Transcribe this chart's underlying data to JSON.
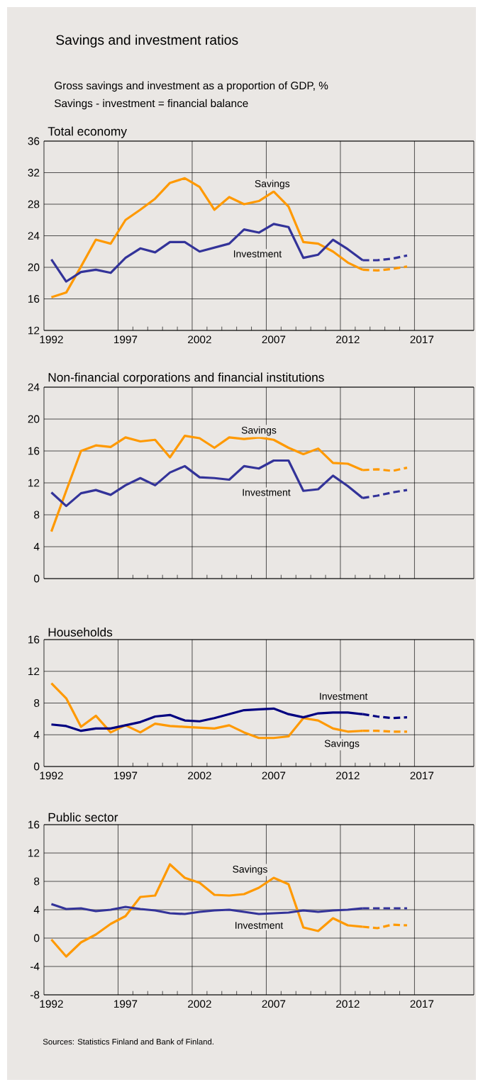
{
  "chart_data": [
    {
      "type": "line",
      "title": "Total economy",
      "annotations": [
        "Savings and investment ratios",
        "Gross savings and investment as a proportion of GDP, %",
        "Savings - investment = financial balance"
      ],
      "xlim": [
        1991.5,
        2020.5
      ],
      "ylim": [
        12,
        36
      ],
      "xticks": [
        1992,
        {
          "value": 1996.5,
          "label": null
        },
        1997,
        {
          "value": 2001.5,
          "label": null
        },
        2002,
        {
          "value": 2006.5,
          "label": null
        },
        2007,
        {
          "value": 2011.5,
          "label": null
        },
        2012,
        {
          "value": 2016.5,
          "label": null
        },
        2017
      ],
      "yticks": [
        12,
        16,
        20,
        24,
        28,
        32,
        36
      ],
      "grid": true,
      "series": [
        {
          "name": "Savings",
          "color": "#ff9900",
          "line_style": "solid",
          "x": [
            1992,
            1993,
            1994,
            1995,
            1996,
            1997,
            1998,
            1999,
            2000,
            2001,
            2002,
            2003,
            2004,
            2005,
            2006,
            2007,
            2008,
            2009,
            2010,
            2011,
            2012,
            2013
          ],
          "values": [
            16.2,
            16.8,
            20.1,
            23.5,
            23.0,
            26.0,
            27.3,
            28.7,
            30.7,
            31.3,
            30.2,
            27.3,
            28.9,
            28.0,
            28.4,
            29.6,
            27.7,
            23.2,
            23.0,
            22.0,
            20.6,
            19.7
          ]
        },
        {
          "color": "#ff9900",
          "line_style": "dashed",
          "x": [
            2013,
            2014,
            2015,
            2016
          ],
          "values": [
            19.7,
            19.6,
            19.8,
            20.1
          ]
        },
        {
          "name": "Investment",
          "color": "#333399",
          "line_style": "solid",
          "x": [
            1992,
            1993,
            1994,
            1995,
            1996,
            1997,
            1998,
            1999,
            2000,
            2001,
            2002,
            2003,
            2004,
            2005,
            2006,
            2007,
            2008,
            2009,
            2010,
            2011,
            2012,
            2013
          ],
          "values": [
            21.0,
            18.2,
            19.4,
            19.7,
            19.3,
            21.2,
            22.4,
            21.9,
            23.2,
            23.2,
            22.0,
            22.5,
            23.0,
            24.8,
            24.4,
            25.5,
            25.1,
            21.2,
            21.6,
            23.5,
            22.3,
            20.9
          ]
        },
        {
          "color": "#333399",
          "line_style": "dashed",
          "x": [
            2013,
            2014,
            2015,
            2016
          ],
          "values": [
            20.9,
            20.9,
            21.1,
            21.5
          ]
        }
      ]
    },
    {
      "type": "line",
      "title": "Non-financial corporations and financial institutions",
      "xlim": [
        1991.5,
        2020.5
      ],
      "ylim": [
        0,
        24
      ],
      "xticks": [
        1992,
        {
          "value": 1996.5,
          "label": null
        },
        1997,
        {
          "value": 2001.5,
          "label": null
        },
        2002,
        {
          "value": 2006.5,
          "label": null
        },
        2007,
        {
          "value": 2011.5,
          "label": null
        },
        2012,
        {
          "value": 2016.5,
          "label": null
        },
        2017
      ],
      "yticks": [
        0,
        4,
        8,
        12,
        16,
        20,
        24
      ],
      "grid": true,
      "tick_labels": "y",
      "series": [
        {
          "name": "Savings",
          "color": "#ff9900",
          "line_style": "solid",
          "x": [
            1992,
            1993,
            1994,
            1995,
            1996,
            1997,
            1998,
            1999,
            2000,
            2001,
            2002,
            2003,
            2004,
            2005,
            2006,
            2007,
            2008,
            2009,
            2010,
            2011,
            2012,
            2013
          ],
          "values": [
            5.9,
            11.0,
            16.0,
            16.7,
            16.5,
            17.7,
            17.2,
            17.4,
            15.2,
            17.9,
            17.6,
            16.4,
            17.7,
            17.5,
            17.7,
            17.4,
            16.4,
            15.6,
            16.3,
            14.5,
            14.4,
            13.6
          ]
        },
        {
          "color": "#ff9900",
          "line_style": "dashed",
          "x": [
            2013,
            2014,
            2015,
            2016
          ],
          "values": [
            13.6,
            13.7,
            13.5,
            13.9
          ]
        },
        {
          "name": "Investment",
          "color": "#333399",
          "line_style": "solid",
          "x": [
            1992,
            1993,
            1994,
            1995,
            1996,
            1997,
            1998,
            1999,
            2000,
            2001,
            2002,
            2003,
            2004,
            2005,
            2006,
            2007,
            2008,
            2009,
            2010,
            2011,
            2012,
            2013
          ],
          "values": [
            10.8,
            9.1,
            10.7,
            11.1,
            10.5,
            11.7,
            12.6,
            11.7,
            13.3,
            14.1,
            12.7,
            12.6,
            12.4,
            14.1,
            13.8,
            14.8,
            14.8,
            11.0,
            11.2,
            12.9,
            11.6,
            10.1
          ]
        },
        {
          "color": "#333399",
          "line_style": "dashed",
          "x": [
            2013,
            2014,
            2015,
            2016
          ],
          "values": [
            10.1,
            10.4,
            10.8,
            11.1
          ]
        }
      ]
    },
    {
      "type": "line",
      "title": "Households",
      "xlim": [
        1991.5,
        2020.5
      ],
      "ylim": [
        0,
        16
      ],
      "xticks": [
        1992,
        {
          "value": 1996.5,
          "label": null
        },
        1997,
        {
          "value": 2001.5,
          "label": null
        },
        2002,
        {
          "value": 2006.5,
          "label": null
        },
        2007,
        {
          "value": 2011.5,
          "label": null
        },
        2012,
        {
          "value": 2016.5,
          "label": null
        },
        2017
      ],
      "yticks": [
        0,
        4,
        8,
        12,
        16
      ],
      "grid": true,
      "series": [
        {
          "name": "Savings",
          "color": "#ff9900",
          "line_style": "solid",
          "x": [
            1992,
            1993,
            1994,
            1995,
            1996,
            1997,
            1998,
            1999,
            2000,
            2001,
            2002,
            2003,
            2004,
            2005,
            2006,
            2007,
            2008,
            2009,
            2010,
            2011,
            2012,
            2013
          ],
          "values": [
            10.5,
            8.6,
            5.0,
            6.4,
            4.3,
            5.2,
            4.3,
            5.4,
            5.1,
            5.0,
            4.9,
            4.8,
            5.2,
            4.3,
            3.6,
            3.6,
            3.8,
            6.1,
            5.8,
            4.8,
            4.4,
            4.5
          ]
        },
        {
          "color": "#ff9900",
          "line_style": "dashed",
          "x": [
            2013,
            2014,
            2015,
            2016
          ],
          "values": [
            4.5,
            4.5,
            4.4,
            4.4
          ]
        },
        {
          "name": "Investment",
          "color": "#000080",
          "line_style": "solid",
          "x": [
            1992,
            1993,
            1994,
            1995,
            1996,
            1997,
            1998,
            1999,
            2000,
            2001,
            2002,
            2003,
            2004,
            2005,
            2006,
            2007,
            2008,
            2009,
            2010,
            2011,
            2012,
            2013
          ],
          "values": [
            5.3,
            5.1,
            4.5,
            4.8,
            4.8,
            5.2,
            5.6,
            6.3,
            6.5,
            5.8,
            5.7,
            6.1,
            6.6,
            7.1,
            7.2,
            7.3,
            6.6,
            6.2,
            6.7,
            6.8,
            6.8,
            6.6
          ]
        },
        {
          "color": "#000080",
          "line_style": "dashed",
          "x": [
            2013,
            2014,
            2015,
            2016
          ],
          "values": [
            6.6,
            6.3,
            6.1,
            6.2
          ]
        }
      ]
    },
    {
      "type": "line",
      "title": "Public sector",
      "annotations": [
        "Sources: Statistics Finland and Bank of Finland."
      ],
      "xlim": [
        1991.5,
        2020.5
      ],
      "ylim": [
        -8,
        16
      ],
      "xticks": [
        1992,
        {
          "value": 1996.5,
          "label": null
        },
        1997,
        {
          "value": 2001.5,
          "label": null
        },
        2002,
        {
          "value": 2006.5,
          "label": null
        },
        2007,
        {
          "value": 2011.5,
          "label": null
        },
        2012,
        {
          "value": 2016.5,
          "label": null
        },
        2017
      ],
      "yticks": [
        -8,
        -4,
        0,
        4,
        8,
        12,
        16
      ],
      "grid": true,
      "series": [
        {
          "name": "Savings",
          "color": "#ff9900",
          "line_style": "solid",
          "x": [
            1992,
            1993,
            1994,
            1995,
            1996,
            1997,
            1998,
            1999,
            2000,
            2001,
            2002,
            2003,
            2004,
            2005,
            2006,
            2007,
            2008,
            2009,
            2010,
            2011,
            2012,
            2013
          ],
          "values": [
            -0.2,
            -2.6,
            -0.6,
            0.5,
            2.0,
            3.1,
            5.8,
            6.0,
            10.4,
            8.5,
            7.8,
            6.1,
            6.0,
            6.2,
            7.1,
            8.5,
            7.6,
            1.5,
            1.0,
            2.8,
            1.8,
            1.6
          ]
        },
        {
          "color": "#ff9900",
          "line_style": "dashed",
          "x": [
            2013,
            2014,
            2015,
            2016
          ],
          "values": [
            1.6,
            1.4,
            1.9,
            1.8
          ]
        },
        {
          "name": "Investment",
          "color": "#333399",
          "line_style": "solid",
          "x": [
            1992,
            1993,
            1994,
            1995,
            1996,
            1997,
            1998,
            1999,
            2000,
            2001,
            2002,
            2003,
            2004,
            2005,
            2006,
            2007,
            2008,
            2009,
            2010,
            2011,
            2012,
            2013
          ],
          "values": [
            4.8,
            4.1,
            4.2,
            3.8,
            4.0,
            4.4,
            4.1,
            3.9,
            3.5,
            3.4,
            3.7,
            3.9,
            4.0,
            3.7,
            3.4,
            3.5,
            3.6,
            3.9,
            3.7,
            3.9,
            4.0,
            4.2
          ]
        },
        {
          "color": "#333399",
          "line_style": "dashed",
          "x": [
            2013,
            2014,
            2015,
            2016
          ],
          "values": [
            4.2,
            4.2,
            4.2,
            4.2
          ]
        }
      ]
    }
  ]
}
